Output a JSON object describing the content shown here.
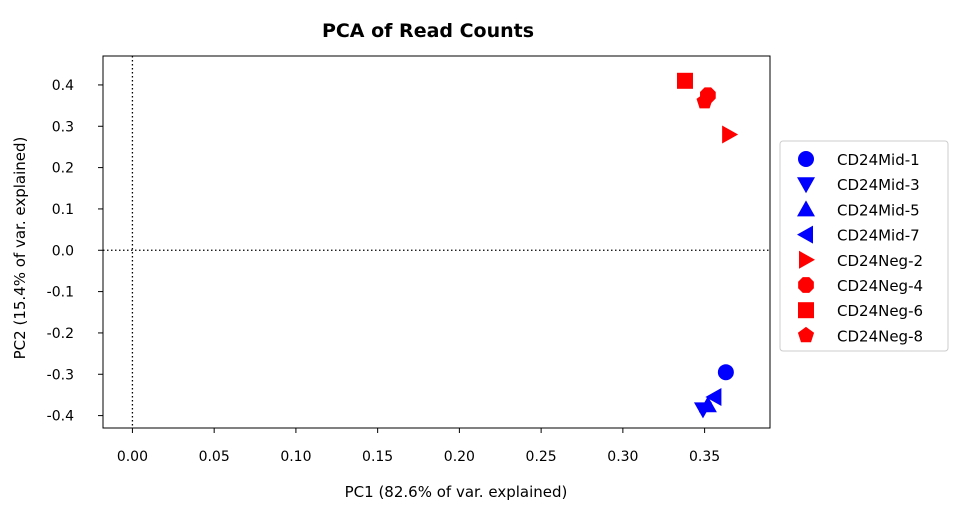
{
  "chart_data": {
    "type": "scatter",
    "title": "PCA of Read Counts",
    "xlabel": "PC1 (82.6% of var. explained)",
    "ylabel": "PC2 (15.4% of var. explained)",
    "xlim": [
      -0.018,
      0.39
    ],
    "ylim": [
      -0.43,
      0.47
    ],
    "xticks": [
      0.0,
      0.05,
      0.1,
      0.15,
      0.2,
      0.25,
      0.3,
      0.35
    ],
    "xtick_labels": [
      "0.00",
      "0.05",
      "0.10",
      "0.15",
      "0.20",
      "0.25",
      "0.30",
      "0.35"
    ],
    "yticks": [
      -0.4,
      -0.3,
      -0.2,
      -0.1,
      0.0,
      0.1,
      0.2,
      0.3,
      0.4
    ],
    "ytick_labels": [
      "-0.4",
      "-0.3",
      "-0.2",
      "-0.1",
      "0.0",
      "0.1",
      "0.2",
      "0.3",
      "0.4"
    ],
    "grid": false,
    "reference_lines": {
      "x": 0,
      "y": 0,
      "style": "dotted"
    },
    "legend_position": "right",
    "series": [
      {
        "name": "CD24Mid-1",
        "marker": "circle",
        "color": "#0000ff",
        "x": 0.363,
        "y": -0.295
      },
      {
        "name": "CD24Mid-3",
        "marker": "triangle-down",
        "color": "#0000ff",
        "x": 0.349,
        "y": -0.385
      },
      {
        "name": "CD24Mid-5",
        "marker": "triangle-up",
        "color": "#0000ff",
        "x": 0.352,
        "y": -0.375
      },
      {
        "name": "CD24Mid-7",
        "marker": "triangle-left",
        "color": "#0000ff",
        "x": 0.356,
        "y": -0.355
      },
      {
        "name": "CD24Neg-2",
        "marker": "triangle-right",
        "color": "#ff0000",
        "x": 0.365,
        "y": 0.28
      },
      {
        "name": "CD24Neg-4",
        "marker": "octagon",
        "color": "#ff0000",
        "x": 0.352,
        "y": 0.375
      },
      {
        "name": "CD24Neg-6",
        "marker": "square",
        "color": "#ff0000",
        "x": 0.338,
        "y": 0.41
      },
      {
        "name": "CD24Neg-8",
        "marker": "pentagon",
        "color": "#ff0000",
        "x": 0.35,
        "y": 0.36
      }
    ]
  }
}
